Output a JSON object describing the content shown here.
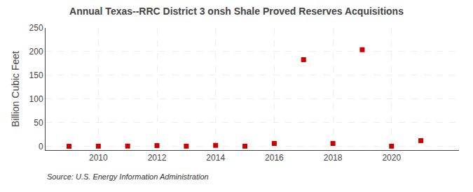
{
  "chart_data": {
    "type": "scatter",
    "title": "Annual Texas--RRC District 3 onsh Shale Proved Reserves Acquisitions",
    "ylabel": "Billion Cubic Feet",
    "annotations": [
      "Source: U.S. Energy Information Administration"
    ],
    "x": [
      2009,
      2010,
      2011,
      2012,
      2013,
      2014,
      2015,
      2016,
      2017,
      2018,
      2019,
      2020,
      2021
    ],
    "values": [
      0.05,
      0.3,
      0.5,
      1.5,
      0.3,
      2.0,
      0.3,
      6.0,
      183.0,
      6.0,
      204.0,
      0.3,
      12.0
    ],
    "color": "#cc0000",
    "marker": "square",
    "xlim": [
      2008.2,
      2022.3
    ],
    "xticks": [
      2010,
      2012,
      2014,
      2016,
      2018,
      2020
    ],
    "ylim": [
      -8,
      250
    ],
    "yticks": [
      0,
      50,
      100,
      150,
      200,
      250
    ],
    "grid": true
  }
}
